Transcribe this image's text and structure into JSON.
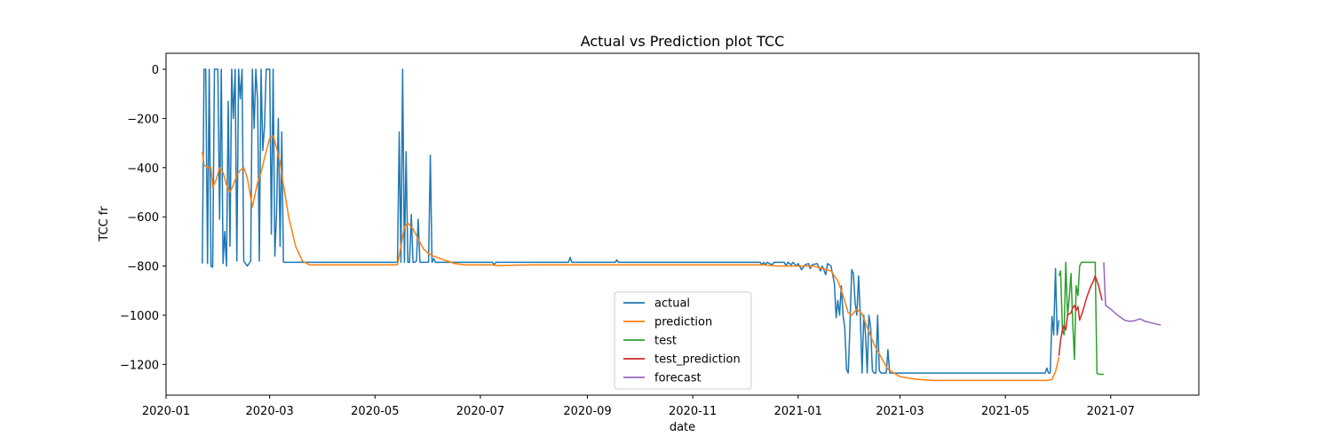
{
  "chart_data": {
    "type": "line",
    "title": "Actual vs Prediction plot TCC",
    "xlabel": "date",
    "ylabel": "TCC fr",
    "xlim": [
      "2020-01-01",
      "2021-08-21"
    ],
    "ylim": [
      -1325,
      65
    ],
    "x_ticks": [
      "2020-01",
      "2020-03",
      "2020-05",
      "2020-07",
      "2020-09",
      "2020-11",
      "2021-01",
      "2021-03",
      "2021-05",
      "2021-07"
    ],
    "y_ticks": [
      0,
      -200,
      -400,
      -600,
      -800,
      -1000,
      -1200
    ],
    "grid": false,
    "legend_position": "lower-center",
    "series": [
      {
        "name": "actual",
        "color": "#1f77b4",
        "points": [
          [
            "2020-01-22",
            -790
          ],
          [
            "2020-01-23",
            0
          ],
          [
            "2020-01-24",
            0
          ],
          [
            "2020-01-25",
            -790
          ],
          [
            "2020-01-26",
            0
          ],
          [
            "2020-01-27",
            -800
          ],
          [
            "2020-01-28",
            -805
          ],
          [
            "2020-01-29",
            0
          ],
          [
            "2020-01-30",
            0
          ],
          [
            "2020-01-31",
            0
          ],
          [
            "2020-02-01",
            -610
          ],
          [
            "2020-02-02",
            0
          ],
          [
            "2020-02-03",
            -790
          ],
          [
            "2020-02-04",
            -660
          ],
          [
            "2020-02-05",
            -800
          ],
          [
            "2020-02-06",
            -130
          ],
          [
            "2020-02-07",
            -720
          ],
          [
            "2020-02-08",
            0
          ],
          [
            "2020-02-09",
            -200
          ],
          [
            "2020-02-10",
            0
          ],
          [
            "2020-02-11",
            -780
          ],
          [
            "2020-02-12",
            0
          ],
          [
            "2020-02-13",
            -120
          ],
          [
            "2020-02-14",
            0
          ],
          [
            "2020-02-15",
            -780
          ],
          [
            "2020-02-16",
            -790
          ],
          [
            "2020-02-17",
            -800
          ],
          [
            "2020-02-18",
            -790
          ],
          [
            "2020-02-19",
            -780
          ],
          [
            "2020-02-20",
            0
          ],
          [
            "2020-02-21",
            -240
          ],
          [
            "2020-02-22",
            0
          ],
          [
            "2020-02-23",
            -130
          ],
          [
            "2020-02-24",
            -780
          ],
          [
            "2020-02-25",
            0
          ],
          [
            "2020-02-26",
            -330
          ],
          [
            "2020-02-27",
            -230
          ],
          [
            "2020-02-28",
            0
          ],
          [
            "2020-02-29",
            0
          ],
          [
            "2020-03-01",
            0
          ],
          [
            "2020-03-02",
            -670
          ],
          [
            "2020-03-03",
            0
          ],
          [
            "2020-03-04",
            -760
          ],
          [
            "2020-03-05",
            -580
          ],
          [
            "2020-03-06",
            -200
          ],
          [
            "2020-03-07",
            -720
          ],
          [
            "2020-03-08",
            -255
          ],
          [
            "2020-03-09",
            -785
          ],
          [
            "2020-03-12",
            -785
          ],
          [
            "2020-05-14",
            -785
          ],
          [
            "2020-05-15",
            -255
          ],
          [
            "2020-05-16",
            -785
          ],
          [
            "2020-05-17",
            0
          ],
          [
            "2020-05-18",
            -785
          ],
          [
            "2020-05-19",
            -335
          ],
          [
            "2020-05-20",
            -785
          ],
          [
            "2020-05-21",
            -785
          ],
          [
            "2020-05-22",
            -590
          ],
          [
            "2020-05-23",
            -785
          ],
          [
            "2020-05-24",
            -785
          ],
          [
            "2020-05-25",
            -780
          ],
          [
            "2020-05-26",
            -610
          ],
          [
            "2020-05-27",
            -785
          ],
          [
            "2020-06-01",
            -785
          ],
          [
            "2020-06-02",
            -350
          ],
          [
            "2020-06-03",
            -785
          ],
          [
            "2020-06-04",
            -770
          ],
          [
            "2020-06-05",
            -785
          ],
          [
            "2020-07-08",
            -785
          ],
          [
            "2020-07-09",
            -795
          ],
          [
            "2020-07-10",
            -785
          ],
          [
            "2020-08-21",
            -785
          ],
          [
            "2020-08-22",
            -765
          ],
          [
            "2020-08-23",
            -785
          ],
          [
            "2020-09-17",
            -785
          ],
          [
            "2020-09-18",
            -775
          ],
          [
            "2020-09-19",
            -785
          ],
          [
            "2020-12-10",
            -785
          ],
          [
            "2020-12-11",
            -795
          ],
          [
            "2020-12-12",
            -785
          ],
          [
            "2020-12-13",
            -795
          ],
          [
            "2020-12-14",
            -785
          ],
          [
            "2020-12-17",
            -795
          ],
          [
            "2020-12-18",
            -785
          ],
          [
            "2020-12-24",
            -785
          ],
          [
            "2020-12-25",
            -800
          ],
          [
            "2020-12-26",
            -785
          ],
          [
            "2020-12-28",
            -795
          ],
          [
            "2020-12-29",
            -785
          ],
          [
            "2020-12-31",
            -800
          ],
          [
            "2021-01-01",
            -790
          ],
          [
            "2021-01-03",
            -815
          ],
          [
            "2021-01-05",
            -795
          ],
          [
            "2021-01-07",
            -790
          ],
          [
            "2021-01-08",
            -810
          ],
          [
            "2021-01-09",
            -795
          ],
          [
            "2021-01-12",
            -790
          ],
          [
            "2021-01-14",
            -820
          ],
          [
            "2021-01-15",
            -800
          ],
          [
            "2021-01-17",
            -835
          ],
          [
            "2021-01-18",
            -790
          ],
          [
            "2021-01-20",
            -800
          ],
          [
            "2021-01-22",
            -870
          ],
          [
            "2021-01-23",
            -1010
          ],
          [
            "2021-01-24",
            -940
          ],
          [
            "2021-01-25",
            -1000
          ],
          [
            "2021-01-26",
            -880
          ],
          [
            "2021-01-27",
            -1000
          ],
          [
            "2021-01-28",
            -1050
          ],
          [
            "2021-01-29",
            -1220
          ],
          [
            "2021-01-30",
            -1235
          ],
          [
            "2021-01-31",
            -1050
          ],
          [
            "2021-02-01",
            -815
          ],
          [
            "2021-02-02",
            -830
          ],
          [
            "2021-02-03",
            -950
          ],
          [
            "2021-02-04",
            -1000
          ],
          [
            "2021-02-05",
            -840
          ],
          [
            "2021-02-06",
            -1000
          ],
          [
            "2021-02-07",
            -1235
          ],
          [
            "2021-02-08",
            -1000
          ],
          [
            "2021-02-09",
            -1080
          ],
          [
            "2021-02-10",
            -1235
          ],
          [
            "2021-02-11",
            -1000
          ],
          [
            "2021-02-12",
            -1050
          ],
          [
            "2021-02-13",
            -1225
          ],
          [
            "2021-02-14",
            -1235
          ],
          [
            "2021-02-15",
            -1235
          ],
          [
            "2021-02-16",
            -1000
          ],
          [
            "2021-02-17",
            -1225
          ],
          [
            "2021-02-18",
            -1235
          ],
          [
            "2021-02-21",
            -1235
          ],
          [
            "2021-02-22",
            -1140
          ],
          [
            "2021-02-23",
            -1235
          ],
          [
            "2021-05-24",
            -1235
          ],
          [
            "2021-05-25",
            -1215
          ],
          [
            "2021-05-26",
            -1235
          ],
          [
            "2021-05-27",
            -1235
          ],
          [
            "2021-05-28",
            -1005
          ],
          [
            "2021-05-29",
            -1080
          ],
          [
            "2021-05-30",
            -810
          ],
          [
            "2021-05-31",
            -1080
          ],
          [
            "2021-06-01",
            -1020
          ]
        ]
      },
      {
        "name": "prediction",
        "color": "#ff7f0e",
        "points": [
          [
            "2020-01-22",
            -335
          ],
          [
            "2020-01-23",
            -390
          ],
          [
            "2020-01-25",
            -400
          ],
          [
            "2020-01-27",
            -400
          ],
          [
            "2020-01-28",
            -480
          ],
          [
            "2020-01-30",
            -450
          ],
          [
            "2020-02-01",
            -400
          ],
          [
            "2020-02-03",
            -420
          ],
          [
            "2020-02-05",
            -470
          ],
          [
            "2020-02-07",
            -500
          ],
          [
            "2020-02-09",
            -470
          ],
          [
            "2020-02-11",
            -430
          ],
          [
            "2020-02-13",
            -410
          ],
          [
            "2020-02-15",
            -400
          ],
          [
            "2020-02-17",
            -440
          ],
          [
            "2020-02-20",
            -560
          ],
          [
            "2020-02-23",
            -460
          ],
          [
            "2020-02-25",
            -420
          ],
          [
            "2020-02-27",
            -360
          ],
          [
            "2020-03-01",
            -280
          ],
          [
            "2020-03-03",
            -270
          ],
          [
            "2020-03-05",
            -320
          ],
          [
            "2020-03-07",
            -380
          ],
          [
            "2020-03-09",
            -470
          ],
          [
            "2020-03-12",
            -600
          ],
          [
            "2020-03-16",
            -720
          ],
          [
            "2020-03-20",
            -780
          ],
          [
            "2020-03-24",
            -795
          ],
          [
            "2020-03-28",
            -795
          ],
          [
            "2020-04-05",
            -795
          ],
          [
            "2020-05-14",
            -795
          ],
          [
            "2020-05-16",
            -720
          ],
          [
            "2020-05-18",
            -640
          ],
          [
            "2020-05-20",
            -625
          ],
          [
            "2020-05-23",
            -650
          ],
          [
            "2020-05-26",
            -690
          ],
          [
            "2020-05-29",
            -730
          ],
          [
            "2020-06-01",
            -750
          ],
          [
            "2020-06-04",
            -760
          ],
          [
            "2020-06-08",
            -770
          ],
          [
            "2020-06-12",
            -780
          ],
          [
            "2020-06-16",
            -790
          ],
          [
            "2020-06-22",
            -795
          ],
          [
            "2020-07-08",
            -795
          ],
          [
            "2020-07-10",
            -798
          ],
          [
            "2020-08-01",
            -795
          ],
          [
            "2020-12-12",
            -795
          ],
          [
            "2020-12-20",
            -800
          ],
          [
            "2020-12-26",
            -800
          ],
          [
            "2021-01-05",
            -800
          ],
          [
            "2021-01-10",
            -800
          ],
          [
            "2021-01-15",
            -810
          ],
          [
            "2021-01-20",
            -820
          ],
          [
            "2021-01-24",
            -860
          ],
          [
            "2021-01-27",
            -920
          ],
          [
            "2021-01-30",
            -990
          ],
          [
            "2021-02-01",
            -1000
          ],
          [
            "2021-02-04",
            -975
          ],
          [
            "2021-02-07",
            -995
          ],
          [
            "2021-02-10",
            -1050
          ],
          [
            "2021-02-14",
            -1120
          ],
          [
            "2021-02-18",
            -1170
          ],
          [
            "2021-02-22",
            -1220
          ],
          [
            "2021-03-01",
            -1250
          ],
          [
            "2021-03-10",
            -1260
          ],
          [
            "2021-03-20",
            -1265
          ],
          [
            "2021-05-26",
            -1265
          ],
          [
            "2021-05-28",
            -1260
          ],
          [
            "2021-05-30",
            -1230
          ],
          [
            "2021-06-01",
            -1170
          ]
        ]
      },
      {
        "name": "test",
        "color": "#2ca02c",
        "points": [
          [
            "2021-06-01",
            -840
          ],
          [
            "2021-06-02",
            -820
          ],
          [
            "2021-06-03",
            -1060
          ],
          [
            "2021-06-04",
            -1080
          ],
          [
            "2021-06-05",
            -785
          ],
          [
            "2021-06-06",
            -1000
          ],
          [
            "2021-06-07",
            -930
          ],
          [
            "2021-06-08",
            -830
          ],
          [
            "2021-06-09",
            -1030
          ],
          [
            "2021-06-10",
            -1180
          ],
          [
            "2021-06-11",
            -880
          ],
          [
            "2021-06-12",
            -920
          ],
          [
            "2021-06-13",
            -800
          ],
          [
            "2021-06-14",
            -785
          ],
          [
            "2021-06-15",
            -785
          ],
          [
            "2021-06-22",
            -785
          ],
          [
            "2021-06-23",
            -1235
          ],
          [
            "2021-06-24",
            -1240
          ],
          [
            "2021-06-27",
            -1240
          ]
        ]
      },
      {
        "name": "test_prediction",
        "color": "#d62728",
        "points": [
          [
            "2021-06-01",
            -1165
          ],
          [
            "2021-06-02",
            -1100
          ],
          [
            "2021-06-03",
            -1060
          ],
          [
            "2021-06-04",
            -1040
          ],
          [
            "2021-06-05",
            -1060
          ],
          [
            "2021-06-06",
            -1000
          ],
          [
            "2021-06-08",
            -990
          ],
          [
            "2021-06-09",
            -970
          ],
          [
            "2021-06-10",
            -960
          ],
          [
            "2021-06-11",
            -980
          ],
          [
            "2021-06-12",
            -965
          ],
          [
            "2021-06-13",
            -1020
          ],
          [
            "2021-06-15",
            -980
          ],
          [
            "2021-06-17",
            -930
          ],
          [
            "2021-06-19",
            -890
          ],
          [
            "2021-06-21",
            -860
          ],
          [
            "2021-06-22",
            -840
          ],
          [
            "2021-06-24",
            -880
          ],
          [
            "2021-06-26",
            -940
          ]
        ]
      },
      {
        "name": "forecast",
        "color": "#9467bd",
        "points": [
          [
            "2021-06-27",
            -785
          ],
          [
            "2021-06-28",
            -960
          ],
          [
            "2021-07-01",
            -975
          ],
          [
            "2021-07-05",
            -1000
          ],
          [
            "2021-07-09",
            -1020
          ],
          [
            "2021-07-12",
            -1025
          ],
          [
            "2021-07-15",
            -1022
          ],
          [
            "2021-07-18",
            -1015
          ],
          [
            "2021-07-21",
            -1025
          ],
          [
            "2021-07-24",
            -1030
          ],
          [
            "2021-07-27",
            -1035
          ],
          [
            "2021-07-30",
            -1040
          ]
        ]
      }
    ]
  }
}
